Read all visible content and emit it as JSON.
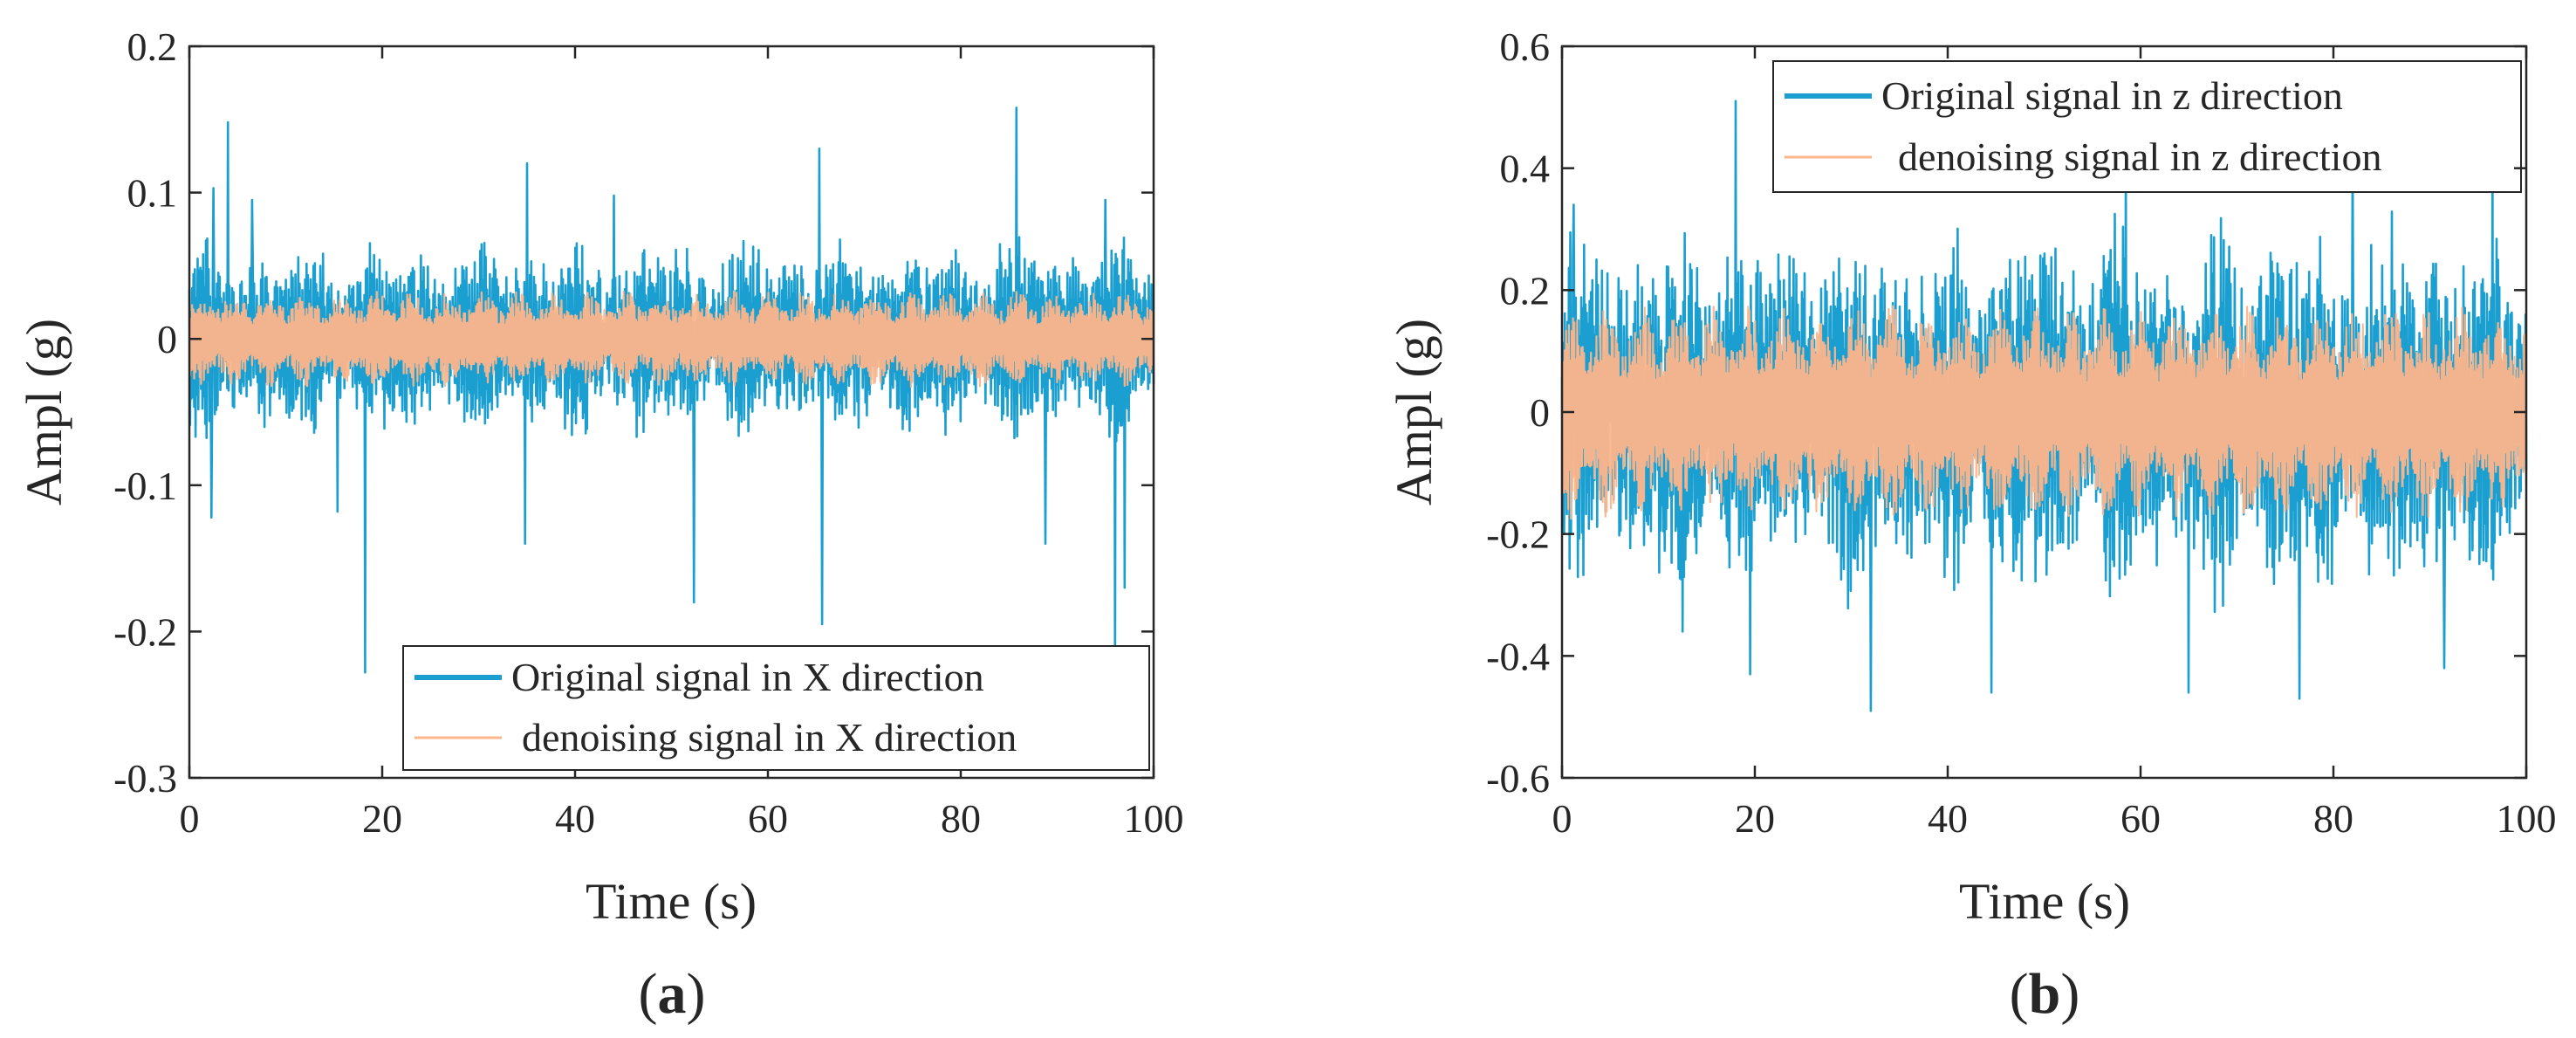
{
  "chart_data": [
    {
      "type": "line",
      "panel_label": "a",
      "title": "",
      "xlabel": "Time (s)",
      "ylabel": "Ampl (g)",
      "xlim": [
        0,
        100
      ],
      "ylim": [
        -0.3,
        0.2
      ],
      "xticks": [
        0,
        20,
        40,
        60,
        80,
        100
      ],
      "yticks": [
        0.2,
        0.1,
        0,
        -0.1,
        -0.2,
        -0.3
      ],
      "xtick_labels": [
        "0",
        "20",
        "40",
        "60",
        "80",
        "100"
      ],
      "ytick_labels": [
        "0.2",
        "0.1",
        "0",
        "-0.1",
        "-0.2",
        "-0.3"
      ],
      "grid": false,
      "legend_position": "bottom-right",
      "series": [
        {
          "name": "Original  signal in X direction",
          "color": "#1a9fd0",
          "amplitude_envelope": 0.06,
          "spikes": [
            {
              "x": 4.0,
              "y": 0.148
            },
            {
              "x": 2.5,
              "y": 0.103
            },
            {
              "x": 6.5,
              "y": 0.095
            },
            {
              "x": 18.2,
              "y": -0.228
            },
            {
              "x": 2.3,
              "y": -0.122
            },
            {
              "x": 15.4,
              "y": -0.118
            },
            {
              "x": 35.0,
              "y": 0.12
            },
            {
              "x": 34.8,
              "y": -0.14
            },
            {
              "x": 44.0,
              "y": 0.098
            },
            {
              "x": 52.3,
              "y": -0.18
            },
            {
              "x": 65.3,
              "y": 0.13
            },
            {
              "x": 65.6,
              "y": -0.195
            },
            {
              "x": 85.8,
              "y": 0.158
            },
            {
              "x": 88.8,
              "y": -0.14
            },
            {
              "x": 95.0,
              "y": 0.095
            },
            {
              "x": 96.0,
              "y": -0.225
            },
            {
              "x": 97.0,
              "y": -0.17
            }
          ]
        },
        {
          "name": "denoising  signal in X direction",
          "color": "#fdb58a",
          "amplitude_envelope": 0.03
        }
      ]
    },
    {
      "type": "line",
      "panel_label": "b",
      "title": "",
      "xlabel": "Time (s)",
      "ylabel": "Ampl (g)",
      "xlim": [
        0,
        100
      ],
      "ylim": [
        -0.6,
        0.6
      ],
      "xticks": [
        0,
        20,
        40,
        60,
        80,
        100
      ],
      "yticks": [
        0.6,
        0.4,
        0.2,
        0,
        -0.2,
        -0.4,
        -0.6
      ],
      "xtick_labels": [
        "0",
        "20",
        "40",
        "60",
        "80",
        "100"
      ],
      "ytick_labels": [
        "0.6",
        "0.4",
        "0.2",
        "0",
        "-0.2",
        "-0.4",
        "-0.6"
      ],
      "grid": false,
      "legend_position": "top-right",
      "series": [
        {
          "name": "Original signal in z direction",
          "color": "#1a9fd0",
          "amplitude_envelope": 0.28,
          "spikes": [
            {
              "x": 18.0,
              "y": 0.51
            },
            {
              "x": 32.0,
              "y": -0.49
            },
            {
              "x": 44.5,
              "y": -0.46
            },
            {
              "x": 12.5,
              "y": -0.36
            },
            {
              "x": 19.5,
              "y": -0.43
            },
            {
              "x": 65.0,
              "y": -0.46
            },
            {
              "x": 76.5,
              "y": -0.47
            },
            {
              "x": 58.5,
              "y": 0.42
            },
            {
              "x": 82.0,
              "y": 0.42
            },
            {
              "x": 96.5,
              "y": 0.42
            },
            {
              "x": 91.5,
              "y": -0.42
            },
            {
              "x": 1.2,
              "y": 0.34
            }
          ]
        },
        {
          "name": "denoising  signal in z direction",
          "color": "#fdb58a",
          "amplitude_envelope": 0.16
        }
      ]
    }
  ]
}
